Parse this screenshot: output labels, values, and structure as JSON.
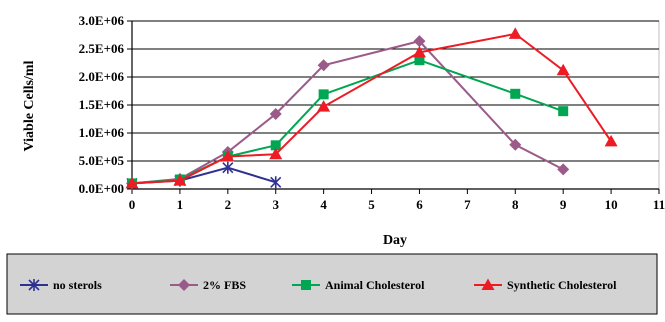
{
  "chart_data": {
    "type": "line",
    "title": "",
    "xlabel": "Day",
    "ylabel": "Viable Cells/ml",
    "xlim": [
      0,
      11
    ],
    "ylim": [
      0,
      3000000
    ],
    "x_ticks": [
      "0",
      "1",
      "2",
      "3",
      "4",
      "5",
      "6",
      "7",
      "8",
      "9",
      "10",
      "11"
    ],
    "y_ticks": [
      "0.0E+00",
      "5.0E+05",
      "1.0E+06",
      "1.5E+06",
      "2.0E+06",
      "2.5E+06",
      "3.0E+06"
    ],
    "grid": "horizontal",
    "legend_position": "bottom",
    "series": [
      {
        "name": "no sterols",
        "color": "#2e3192",
        "marker": "asterisk",
        "x": [
          0,
          1,
          2,
          3
        ],
        "y": [
          100000,
          150000,
          380000,
          120000
        ]
      },
      {
        "name": "2% FBS",
        "color": "#9b5b8a",
        "marker": "diamond",
        "x": [
          0,
          1,
          2,
          3,
          4,
          6,
          8,
          9
        ],
        "y": [
          100000,
          180000,
          660000,
          1340000,
          2210000,
          2640000,
          790000,
          350000
        ]
      },
      {
        "name": "Animal Cholesterol",
        "color": "#00a651",
        "marker": "square",
        "x": [
          0,
          1,
          2,
          3,
          4,
          6,
          8,
          9
        ],
        "y": [
          100000,
          170000,
          580000,
          780000,
          1690000,
          2300000,
          1700000,
          1390000
        ]
      },
      {
        "name": "Synthetic Cholesterol",
        "color": "#ed1c24",
        "marker": "triangle",
        "x": [
          0,
          1,
          2,
          3,
          4,
          6,
          8,
          9,
          10
        ],
        "y": [
          100000,
          150000,
          580000,
          620000,
          1470000,
          2440000,
          2770000,
          2120000,
          850000
        ]
      }
    ]
  }
}
